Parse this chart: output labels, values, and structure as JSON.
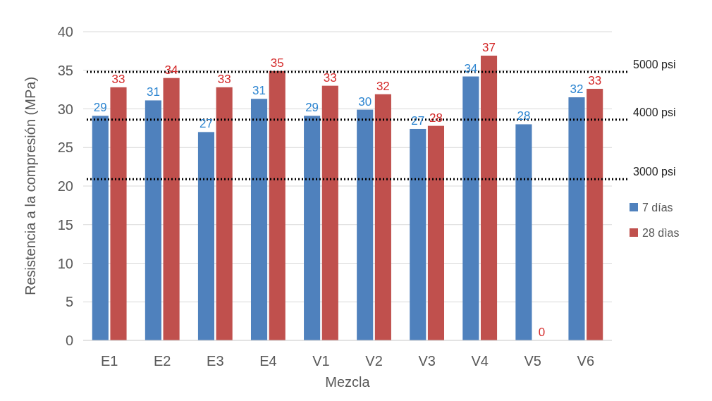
{
  "chart_data": {
    "type": "bar",
    "xlabel": "Mezcla",
    "ylabel": "Resistencia a la compresión (MPa)",
    "categories": [
      "E1",
      "E2",
      "E3",
      "E4",
      "V1",
      "V2",
      "V3",
      "V4",
      "V5",
      "V6"
    ],
    "series": [
      {
        "name": "7 días",
        "color": "#4f81bd",
        "values": [
          29.1,
          31.1,
          27.0,
          31.3,
          29.1,
          29.9,
          27.4,
          34.2,
          28.0,
          31.5
        ],
        "value_labels": [
          "29",
          "31",
          "27",
          "31",
          "29",
          "30",
          "27",
          "34",
          "28",
          "32"
        ]
      },
      {
        "name": "28 dìas",
        "color": "#c0504d",
        "values": [
          32.8,
          34.0,
          32.8,
          34.9,
          33.0,
          31.9,
          27.8,
          36.9,
          0,
          32.6
        ],
        "value_labels": [
          "33",
          "34",
          "33",
          "35",
          "33",
          "32",
          "28",
          "37",
          "0",
          "33"
        ]
      }
    ],
    "ylim": [
      0,
      40
    ],
    "yticks": [
      0,
      5,
      10,
      15,
      20,
      25,
      30,
      35,
      40
    ],
    "grid": "y",
    "legend": "right",
    "ref_lines": [
      {
        "axis": "y",
        "value": 34.8,
        "label": "5000 psi",
        "color": "#000000",
        "line_style": "dotted"
      },
      {
        "axis": "y",
        "value": 28.6,
        "label": "4000 psi",
        "color": "#000000",
        "line_style": "dotted"
      },
      {
        "axis": "y",
        "value": 20.9,
        "label": "3000 psi",
        "color": "#000000",
        "line_style": "dotted"
      }
    ]
  }
}
